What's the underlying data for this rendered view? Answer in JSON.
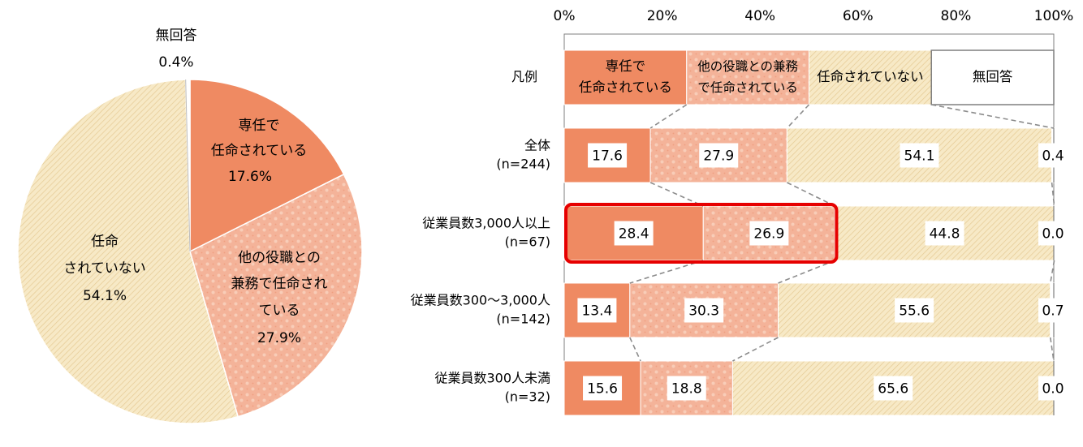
{
  "colors": {
    "dedicated": "#ef8a62",
    "concurrent": "#f4b399",
    "not_appointed": "#f6e6bf",
    "no_answer": "#ffffff",
    "highlight": "#e60000",
    "connector": "#8c8c8c"
  },
  "pie": {
    "chart_data": {
      "type": "pie",
      "slices": [
        {
          "key": "dedicated",
          "label_lines": [
            "専任で",
            "任命されている"
          ],
          "value": 17.6,
          "value_text": "17.6%"
        },
        {
          "key": "concurrent",
          "label_lines": [
            "他の役職との",
            "兼務で任命され",
            "ている"
          ],
          "value": 27.9,
          "value_text": "27.9%"
        },
        {
          "key": "not_appointed",
          "label_lines": [
            "任命",
            "されていない"
          ],
          "value": 54.1,
          "value_text": "54.1%"
        },
        {
          "key": "no_answer",
          "label_lines": [
            "無回答"
          ],
          "value": 0.4,
          "value_text": "0.4%"
        }
      ]
    }
  },
  "bar": {
    "chart_data": {
      "type": "bar",
      "orientation": "horizontal",
      "stacked": true,
      "xlim": [
        0,
        100
      ],
      "x_ticks": [
        "0%",
        "20%",
        "40%",
        "60%",
        "80%",
        "100%"
      ],
      "legend_label": "凡例",
      "legend": [
        {
          "key": "dedicated",
          "lines": [
            "専任で",
            "任命されている"
          ]
        },
        {
          "key": "concurrent",
          "lines": [
            "他の役職との兼務",
            "で任命されている"
          ]
        },
        {
          "key": "not_appointed",
          "lines": [
            "任命されていない"
          ]
        },
        {
          "key": "no_answer",
          "lines": [
            "無回答"
          ]
        }
      ],
      "categories": [
        {
          "lines": [
            "全体",
            "(n=244)"
          ]
        },
        {
          "lines": [
            "従業員数3,000人以上",
            "(n=67)"
          ]
        },
        {
          "lines": [
            "従業員数300～3,000人",
            "(n=142)"
          ]
        },
        {
          "lines": [
            "従業員数300人未満",
            "(n=32)"
          ]
        }
      ],
      "series": [
        {
          "key": "dedicated",
          "values": [
            17.6,
            28.4,
            13.4,
            15.6
          ]
        },
        {
          "key": "concurrent",
          "values": [
            27.9,
            26.9,
            30.3,
            18.8
          ]
        },
        {
          "key": "not_appointed",
          "values": [
            54.1,
            44.8,
            55.6,
            65.6
          ]
        },
        {
          "key": "no_answer",
          "values": [
            0.4,
            0.0,
            0.7,
            0.0
          ]
        }
      ],
      "value_labels": [
        [
          "17.6",
          "27.9",
          "54.1",
          "0.4"
        ],
        [
          "28.4",
          "26.9",
          "44.8",
          "0.0"
        ],
        [
          "13.4",
          "30.3",
          "55.6",
          "0.7"
        ],
        [
          "15.6",
          "18.8",
          "65.6",
          "0.0"
        ]
      ],
      "highlight": {
        "category_index": 1,
        "series_keys": [
          "dedicated",
          "concurrent"
        ]
      }
    }
  }
}
